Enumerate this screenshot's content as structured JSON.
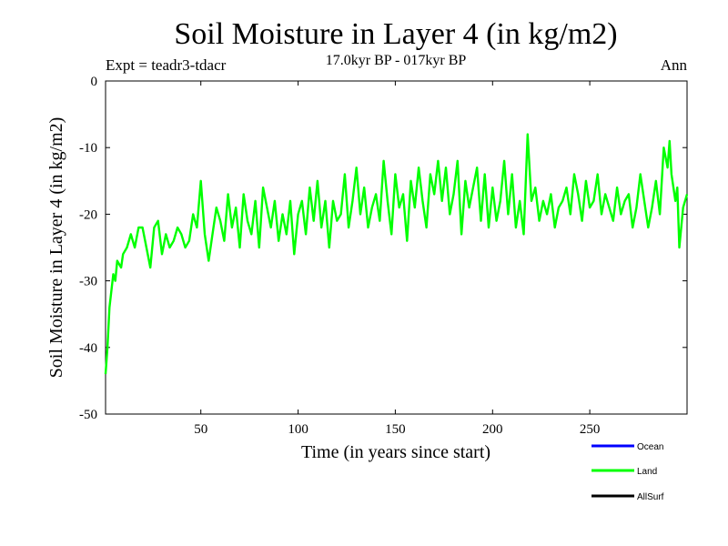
{
  "chart_data": {
    "type": "line",
    "title": "Soil Moisture in Layer 4 (in kg/m2)",
    "subtitle": "17.0kyr BP - 017kyr BP",
    "experiment": "Expt = teadr3-tdacr",
    "season": "Ann",
    "xlabel": "Time (in years since start)",
    "ylabel": "Soil Moisture in Layer 4 (in kg/m2)",
    "xlim": [
      1,
      300
    ],
    "ylim": [
      -50,
      0
    ],
    "xticks": [
      50,
      100,
      150,
      200,
      250
    ],
    "yticks": [
      0,
      -10,
      -20,
      -30,
      -40,
      -50
    ],
    "grid": false,
    "legend_position": "bottom-right",
    "series": [
      {
        "name": "Ocean",
        "color": "#0000ff",
        "x": [],
        "values": []
      },
      {
        "name": "Land",
        "color": "#00ff00",
        "x": [
          1,
          2,
          3,
          5,
          6,
          7,
          9,
          10,
          12,
          14,
          16,
          18,
          20,
          22,
          24,
          26,
          28,
          30,
          32,
          34,
          36,
          38,
          40,
          42,
          44,
          46,
          48,
          50,
          52,
          54,
          56,
          58,
          60,
          62,
          64,
          66,
          68,
          70,
          72,
          74,
          76,
          78,
          80,
          82,
          84,
          86,
          88,
          90,
          92,
          94,
          96,
          98,
          100,
          102,
          104,
          106,
          108,
          110,
          112,
          114,
          116,
          118,
          120,
          122,
          124,
          126,
          128,
          130,
          132,
          134,
          136,
          138,
          140,
          142,
          144,
          146,
          148,
          150,
          152,
          154,
          156,
          158,
          160,
          162,
          164,
          166,
          168,
          170,
          172,
          174,
          176,
          178,
          180,
          182,
          184,
          186,
          188,
          190,
          192,
          194,
          196,
          198,
          200,
          202,
          204,
          206,
          208,
          210,
          212,
          214,
          216,
          218,
          220,
          222,
          224,
          226,
          228,
          230,
          232,
          234,
          236,
          238,
          240,
          242,
          244,
          246,
          248,
          250,
          252,
          254,
          256,
          258,
          260,
          262,
          264,
          266,
          268,
          270,
          272,
          274,
          276,
          278,
          280,
          282,
          284,
          286,
          288,
          290,
          291,
          292,
          294,
          295,
          296,
          298,
          300
        ],
        "values": [
          -44,
          -40,
          -34,
          -29,
          -30,
          -27,
          -28,
          -26,
          -25,
          -23,
          -25,
          -22,
          -22,
          -25,
          -28,
          -22,
          -21,
          -26,
          -23,
          -25,
          -24,
          -22,
          -23,
          -25,
          -24,
          -20,
          -22,
          -15,
          -23,
          -27,
          -23,
          -19,
          -21,
          -24,
          -17,
          -22,
          -19,
          -25,
          -17,
          -21,
          -23,
          -18,
          -25,
          -16,
          -19,
          -22,
          -18,
          -24,
          -20,
          -23,
          -18,
          -26,
          -20,
          -18,
          -23,
          -16,
          -21,
          -15,
          -22,
          -18,
          -25,
          -18,
          -21,
          -20,
          -14,
          -22,
          -18,
          -13,
          -20,
          -16,
          -22,
          -19,
          -17,
          -21,
          -12,
          -18,
          -23,
          -14,
          -19,
          -17,
          -24,
          -15,
          -19,
          -13,
          -18,
          -22,
          -14,
          -17,
          -12,
          -18,
          -13,
          -20,
          -17,
          -12,
          -23,
          -15,
          -19,
          -16,
          -13,
          -21,
          -14,
          -22,
          -16,
          -21,
          -18,
          -12,
          -20,
          -14,
          -22,
          -18,
          -23,
          -8,
          -18,
          -16,
          -21,
          -18,
          -20,
          -17,
          -22,
          -19,
          -18,
          -16,
          -20,
          -14,
          -17,
          -21,
          -15,
          -19,
          -18,
          -14,
          -20,
          -17,
          -19,
          -21,
          -16,
          -20,
          -18,
          -17,
          -22,
          -19,
          -14,
          -18,
          -22,
          -19,
          -15,
          -20,
          -10,
          -13,
          -9,
          -14,
          -18,
          -16,
          -25,
          -19,
          -17
        ]
      },
      {
        "name": "AllSurf",
        "color": "#000000",
        "x": [],
        "values": []
      }
    ]
  }
}
